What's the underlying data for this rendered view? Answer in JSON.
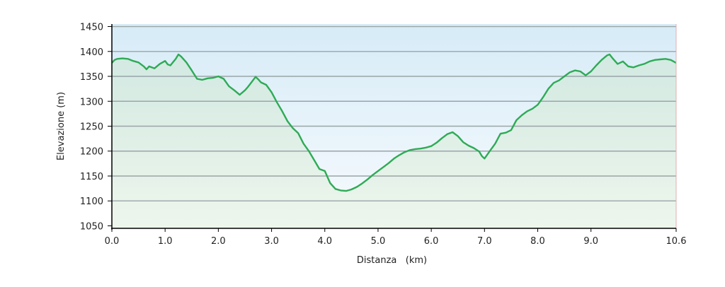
{
  "chart_data": {
    "type": "area",
    "title": "",
    "xlabel": "Distanza   (km)",
    "ylabel": "Elevazione (m)",
    "xlim": [
      0,
      10.6
    ],
    "ylim": [
      1045,
      1455
    ],
    "x_ticks": [
      {
        "value": 0.0,
        "label": "0.0"
      },
      {
        "value": 1.0,
        "label": "1.0"
      },
      {
        "value": 2.0,
        "label": "2.0"
      },
      {
        "value": 3.0,
        "label": "3.0"
      },
      {
        "value": 4.0,
        "label": "4.0"
      },
      {
        "value": 5.0,
        "label": "5.0"
      },
      {
        "value": 6.0,
        "label": "6.0"
      },
      {
        "value": 7.0,
        "label": "7.0"
      },
      {
        "value": 8.0,
        "label": "8.0"
      },
      {
        "value": 9.0,
        "label": "9.0"
      },
      {
        "value": 10.6,
        "label": "10.6"
      }
    ],
    "y_ticks": [
      {
        "value": 1050,
        "label": "1050"
      },
      {
        "value": 1100,
        "label": "1100"
      },
      {
        "value": 1150,
        "label": "1150"
      },
      {
        "value": 1200,
        "label": "1200"
      },
      {
        "value": 1250,
        "label": "1250"
      },
      {
        "value": 1300,
        "label": "1300"
      },
      {
        "value": 1350,
        "label": "1350"
      },
      {
        "value": 1400,
        "label": "1400"
      },
      {
        "value": 1450,
        "label": "1450"
      }
    ],
    "grid": "horizontal",
    "colors": {
      "line": "#2eab55",
      "grid": "#9aa5a8",
      "axis": "#000000",
      "sky_top": "#d6ebf7",
      "sky_bottom": "#f8fbfe",
      "fill_top": "#d2e9e2",
      "fill_bottom": "#eef6ec"
    },
    "series": [
      {
        "x": [
          0.0,
          0.05,
          0.1,
          0.2,
          0.3,
          0.4,
          0.5,
          0.6,
          0.65,
          0.7,
          0.8,
          0.9,
          1.0,
          1.05,
          1.1,
          1.2,
          1.25,
          1.3,
          1.4,
          1.5,
          1.6,
          1.7,
          1.8,
          1.9,
          2.0,
          2.1,
          2.2,
          2.3,
          2.4,
          2.5,
          2.55,
          2.6,
          2.7,
          2.75,
          2.8,
          2.9,
          3.0,
          3.1,
          3.2,
          3.3,
          3.4,
          3.5,
          3.6,
          3.7,
          3.8,
          3.9,
          4.0,
          4.05,
          4.1,
          4.2,
          4.3,
          4.4,
          4.5,
          4.6,
          4.7,
          4.8,
          4.9,
          5.0,
          5.1,
          5.2,
          5.3,
          5.4,
          5.5,
          5.6,
          5.7,
          5.8,
          5.9,
          6.0,
          6.1,
          6.2,
          6.3,
          6.4,
          6.5,
          6.6,
          6.7,
          6.8,
          6.9,
          6.95,
          7.0,
          7.1,
          7.2,
          7.3,
          7.4,
          7.5,
          7.6,
          7.7,
          7.8,
          7.9,
          8.0,
          8.1,
          8.2,
          8.3,
          8.4,
          8.5,
          8.6,
          8.7,
          8.8,
          8.9,
          9.0,
          9.1,
          9.2,
          9.3,
          9.35,
          9.4,
          9.5,
          9.6,
          9.7,
          9.8,
          9.9,
          10.0,
          10.1,
          10.2,
          10.3,
          10.4,
          10.5,
          10.6
        ],
        "y": [
          1377,
          1383,
          1385,
          1386,
          1385,
          1381,
          1378,
          1370,
          1364,
          1370,
          1366,
          1375,
          1381,
          1374,
          1372,
          1385,
          1394,
          1390,
          1378,
          1362,
          1345,
          1343,
          1346,
          1347,
          1350,
          1345,
          1330,
          1322,
          1313,
          1322,
          1328,
          1335,
          1349,
          1344,
          1338,
          1333,
          1318,
          1298,
          1280,
          1260,
          1246,
          1236,
          1215,
          1200,
          1182,
          1164,
          1160,
          1148,
          1136,
          1124,
          1121,
          1120,
          1123,
          1128,
          1135,
          1143,
          1152,
          1160,
          1168,
          1176,
          1185,
          1192,
          1198,
          1202,
          1204,
          1205,
          1207,
          1210,
          1217,
          1226,
          1234,
          1238,
          1230,
          1218,
          1211,
          1206,
          1199,
          1190,
          1185,
          1200,
          1215,
          1235,
          1237,
          1242,
          1262,
          1272,
          1280,
          1285,
          1293,
          1308,
          1325,
          1337,
          1342,
          1350,
          1358,
          1362,
          1360,
          1352,
          1360,
          1372,
          1383,
          1392,
          1394,
          1387,
          1375,
          1380,
          1370,
          1368,
          1372,
          1375,
          1380,
          1383,
          1384,
          1385,
          1383,
          1377
        ]
      }
    ]
  }
}
